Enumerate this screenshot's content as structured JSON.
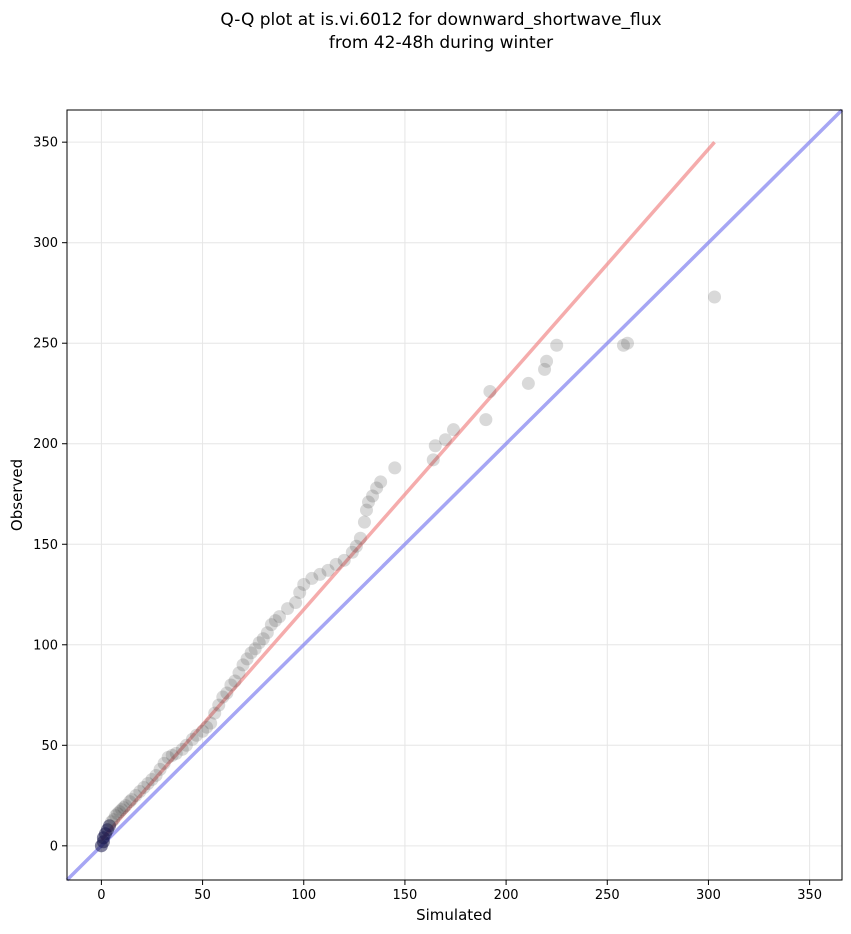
{
  "chart_data": {
    "type": "scatter",
    "title_lines": [
      "Q-Q plot at is.vi.6012 for downward_shortwave_flux",
      "from 42-48h during winter"
    ],
    "xlabel": "Simulated",
    "ylabel": "Observed",
    "xlim": [
      -17,
      366
    ],
    "ylim": [
      -17,
      366
    ],
    "xticks": [
      0,
      50,
      100,
      150,
      200,
      250,
      300,
      350
    ],
    "yticks": [
      0,
      50,
      100,
      150,
      200,
      250,
      300,
      350
    ],
    "grid": true,
    "colors": {
      "points": "#404040",
      "points_low": "#1a1a4d",
      "fit_line": "#f08080",
      "identity_line": "#8080f0"
    },
    "identity_line": {
      "x": [
        -17,
        366
      ],
      "y": [
        -17,
        366
      ]
    },
    "fit_line": {
      "x": [
        0,
        303
      ],
      "y": [
        3,
        350
      ]
    },
    "points": {
      "x": [
        0,
        1,
        1,
        2,
        3,
        4,
        5,
        6,
        7,
        8,
        9,
        10,
        11,
        12,
        14,
        15,
        17,
        19,
        21,
        23,
        25,
        27,
        29,
        31,
        33,
        35,
        37,
        40,
        42,
        45,
        47,
        50,
        52,
        54,
        56,
        58,
        60,
        62,
        64,
        66,
        68,
        70,
        72,
        74,
        76,
        78,
        80,
        82,
        84,
        86,
        88,
        92,
        96,
        98,
        100,
        104,
        108,
        112,
        116,
        120,
        124,
        126,
        128,
        130,
        131,
        132,
        134,
        136,
        138,
        145,
        164,
        165,
        170,
        174,
        190,
        192,
        211,
        219,
        220,
        225,
        258,
        260,
        303
      ],
      "y": [
        0,
        2,
        4,
        6,
        8,
        10,
        12,
        13,
        15,
        16,
        17,
        18,
        19,
        20,
        22,
        23,
        25,
        27,
        29,
        31,
        33,
        35,
        38,
        41,
        44,
        45,
        46,
        48,
        50,
        53,
        55,
        57,
        59,
        61,
        66,
        70,
        74,
        76,
        80,
        82,
        86,
        90,
        93,
        96,
        98,
        101,
        103,
        106,
        110,
        112,
        114,
        118,
        121,
        126,
        130,
        133,
        135,
        137,
        140,
        142,
        146,
        149,
        153,
        161,
        167,
        171,
        174,
        178,
        181,
        188,
        192,
        199,
        202,
        207,
        212,
        226,
        230,
        237,
        241,
        249,
        249,
        250,
        273
      ]
    }
  }
}
